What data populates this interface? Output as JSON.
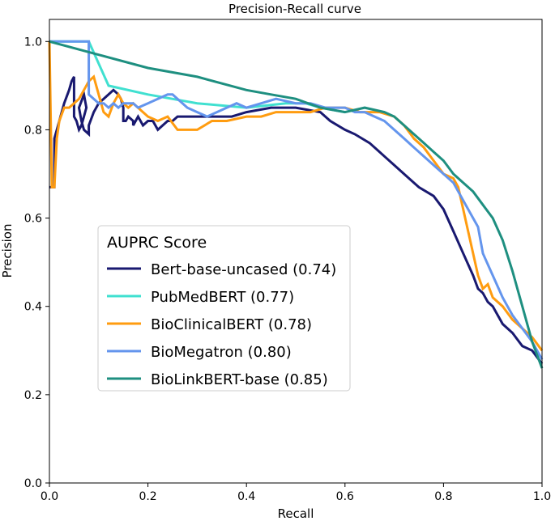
{
  "chart_data": {
    "type": "line",
    "title": "Precision-Recall curve",
    "xlabel": "Recall",
    "ylabel": "Precision",
    "xlim": [
      0,
      1
    ],
    "ylim": [
      0,
      1.05
    ],
    "xticks": [
      0,
      0.2,
      0.4,
      0.6,
      0.8,
      1.0
    ],
    "xtick_labels": [
      "0.0",
      "0.2",
      "0.4",
      "0.6",
      "0.8",
      "1.0"
    ],
    "yticks": [
      0,
      0.2,
      0.4,
      0.6,
      0.8,
      1.0
    ],
    "ytick_labels": [
      "0.0",
      "0.2",
      "0.4",
      "0.6",
      "0.8",
      "1.0"
    ],
    "grid": false,
    "legend": {
      "title": "AUPRC Score",
      "position": "center-left",
      "entries": [
        "Bert-base-uncased (0.74)",
        "PubMedBERT (0.77)",
        "BioClinicalBERT (0.78)",
        "BioMegatron (0.80)",
        "BioLinkBERT-base (0.85)"
      ]
    },
    "series": [
      {
        "name": "Bert-base-uncased (0.74)",
        "color": "#191970",
        "x": [
          0.0,
          0.01,
          0.01,
          0.02,
          0.03,
          0.04,
          0.045,
          0.05,
          0.05,
          0.055,
          0.06,
          0.065,
          0.07,
          0.075,
          0.07,
          0.06,
          0.065,
          0.07,
          0.08,
          0.08,
          0.09,
          0.1,
          0.11,
          0.12,
          0.13,
          0.14,
          0.145,
          0.15,
          0.15,
          0.155,
          0.16,
          0.17,
          0.17,
          0.18,
          0.19,
          0.2,
          0.21,
          0.22,
          0.23,
          0.24,
          0.25,
          0.26,
          0.28,
          0.3,
          0.31,
          0.33,
          0.35,
          0.37,
          0.37,
          0.4,
          0.45,
          0.5,
          0.55,
          0.57,
          0.6,
          0.62,
          0.65,
          0.67,
          0.68,
          0.7,
          0.73,
          0.75,
          0.78,
          0.8,
          0.82,
          0.84,
          0.86,
          0.87,
          0.88,
          0.89,
          0.9,
          0.91,
          0.92,
          0.94,
          0.96,
          0.98,
          1.0
        ],
        "y": [
          0.67,
          0.67,
          0.78,
          0.82,
          0.86,
          0.89,
          0.91,
          0.92,
          0.83,
          0.82,
          0.8,
          0.81,
          0.83,
          0.85,
          0.88,
          0.85,
          0.82,
          0.8,
          0.79,
          0.81,
          0.84,
          0.86,
          0.87,
          0.88,
          0.89,
          0.88,
          0.87,
          0.85,
          0.82,
          0.82,
          0.83,
          0.82,
          0.81,
          0.83,
          0.81,
          0.82,
          0.82,
          0.8,
          0.81,
          0.82,
          0.82,
          0.83,
          0.83,
          0.83,
          0.83,
          0.83,
          0.83,
          0.83,
          0.83,
          0.84,
          0.85,
          0.85,
          0.84,
          0.82,
          0.8,
          0.79,
          0.77,
          0.75,
          0.74,
          0.72,
          0.69,
          0.67,
          0.65,
          0.62,
          0.57,
          0.52,
          0.47,
          0.44,
          0.43,
          0.41,
          0.4,
          0.38,
          0.36,
          0.34,
          0.31,
          0.3,
          0.27
        ]
      },
      {
        "name": "PubMedBERT (0.77)",
        "color": "#40e0d0",
        "x": [
          0.0,
          0.08,
          0.12,
          0.2,
          0.3,
          0.4,
          0.48,
          0.52,
          0.55,
          0.6
        ],
        "y": [
          1.0,
          1.0,
          0.9,
          0.88,
          0.86,
          0.85,
          0.86,
          0.86,
          0.85,
          0.84
        ]
      },
      {
        "name": "BioClinicalBERT (0.78)",
        "color": "#ff9c10",
        "x": [
          0.0,
          0.005,
          0.005,
          0.01,
          0.015,
          0.02,
          0.03,
          0.04,
          0.05,
          0.06,
          0.07,
          0.08,
          0.09,
          0.1,
          0.11,
          0.12,
          0.13,
          0.14,
          0.15,
          0.16,
          0.17,
          0.18,
          0.19,
          0.2,
          0.22,
          0.24,
          0.26,
          0.28,
          0.3,
          0.33,
          0.36,
          0.4,
          0.43,
          0.46,
          0.5,
          0.53,
          0.56,
          0.6,
          0.63,
          0.65,
          0.67,
          0.7,
          0.72,
          0.74,
          0.76,
          0.78,
          0.8,
          0.82,
          0.83,
          0.84,
          0.85,
          0.86,
          0.87,
          0.88,
          0.89,
          0.9,
          0.92,
          0.94,
          0.96,
          0.98,
          1.0
        ],
        "y": [
          1.0,
          0.67,
          0.67,
          0.67,
          0.78,
          0.82,
          0.85,
          0.85,
          0.86,
          0.87,
          0.89,
          0.91,
          0.92,
          0.88,
          0.84,
          0.83,
          0.86,
          0.88,
          0.86,
          0.85,
          0.86,
          0.85,
          0.84,
          0.83,
          0.82,
          0.83,
          0.8,
          0.8,
          0.8,
          0.82,
          0.82,
          0.83,
          0.83,
          0.84,
          0.84,
          0.84,
          0.85,
          0.85,
          0.84,
          0.84,
          0.84,
          0.83,
          0.81,
          0.78,
          0.76,
          0.73,
          0.7,
          0.69,
          0.67,
          0.62,
          0.57,
          0.52,
          0.47,
          0.44,
          0.45,
          0.42,
          0.4,
          0.37,
          0.35,
          0.33,
          0.3
        ]
      },
      {
        "name": "BioMegatron (0.80)",
        "color": "#6495ed",
        "x": [
          0.0,
          0.08,
          0.08,
          0.09,
          0.1,
          0.11,
          0.12,
          0.13,
          0.14,
          0.15,
          0.16,
          0.17,
          0.18,
          0.2,
          0.22,
          0.24,
          0.25,
          0.26,
          0.28,
          0.3,
          0.32,
          0.34,
          0.36,
          0.38,
          0.4,
          0.43,
          0.46,
          0.5,
          0.53,
          0.56,
          0.58,
          0.6,
          0.62,
          0.64,
          0.66,
          0.68,
          0.7,
          0.72,
          0.74,
          0.76,
          0.78,
          0.8,
          0.82,
          0.84,
          0.85,
          0.86,
          0.87,
          0.88,
          0.9,
          0.92,
          0.94,
          0.96,
          0.98,
          1.0
        ],
        "y": [
          1.0,
          1.0,
          0.88,
          0.87,
          0.86,
          0.86,
          0.85,
          0.86,
          0.85,
          0.86,
          0.86,
          0.86,
          0.85,
          0.86,
          0.87,
          0.88,
          0.88,
          0.87,
          0.85,
          0.84,
          0.83,
          0.84,
          0.85,
          0.86,
          0.85,
          0.86,
          0.87,
          0.86,
          0.86,
          0.85,
          0.85,
          0.85,
          0.84,
          0.84,
          0.83,
          0.82,
          0.8,
          0.78,
          0.76,
          0.74,
          0.72,
          0.7,
          0.68,
          0.64,
          0.62,
          0.6,
          0.58,
          0.52,
          0.47,
          0.42,
          0.38,
          0.35,
          0.32,
          0.28
        ]
      },
      {
        "name": "BioLinkBERT-base (0.85)",
        "color": "#1e8f80",
        "x": [
          0.0,
          0.1,
          0.2,
          0.3,
          0.4,
          0.45,
          0.5,
          0.55,
          0.6,
          0.64,
          0.68,
          0.7,
          0.72,
          0.74,
          0.76,
          0.78,
          0.8,
          0.82,
          0.84,
          0.86,
          0.88,
          0.9,
          0.92,
          0.94,
          0.96,
          0.98,
          1.0
        ],
        "y": [
          1.0,
          0.97,
          0.94,
          0.92,
          0.89,
          0.88,
          0.87,
          0.85,
          0.84,
          0.85,
          0.84,
          0.83,
          0.81,
          0.79,
          0.77,
          0.75,
          0.73,
          0.7,
          0.68,
          0.66,
          0.63,
          0.6,
          0.55,
          0.48,
          0.4,
          0.32,
          0.26
        ]
      }
    ]
  }
}
